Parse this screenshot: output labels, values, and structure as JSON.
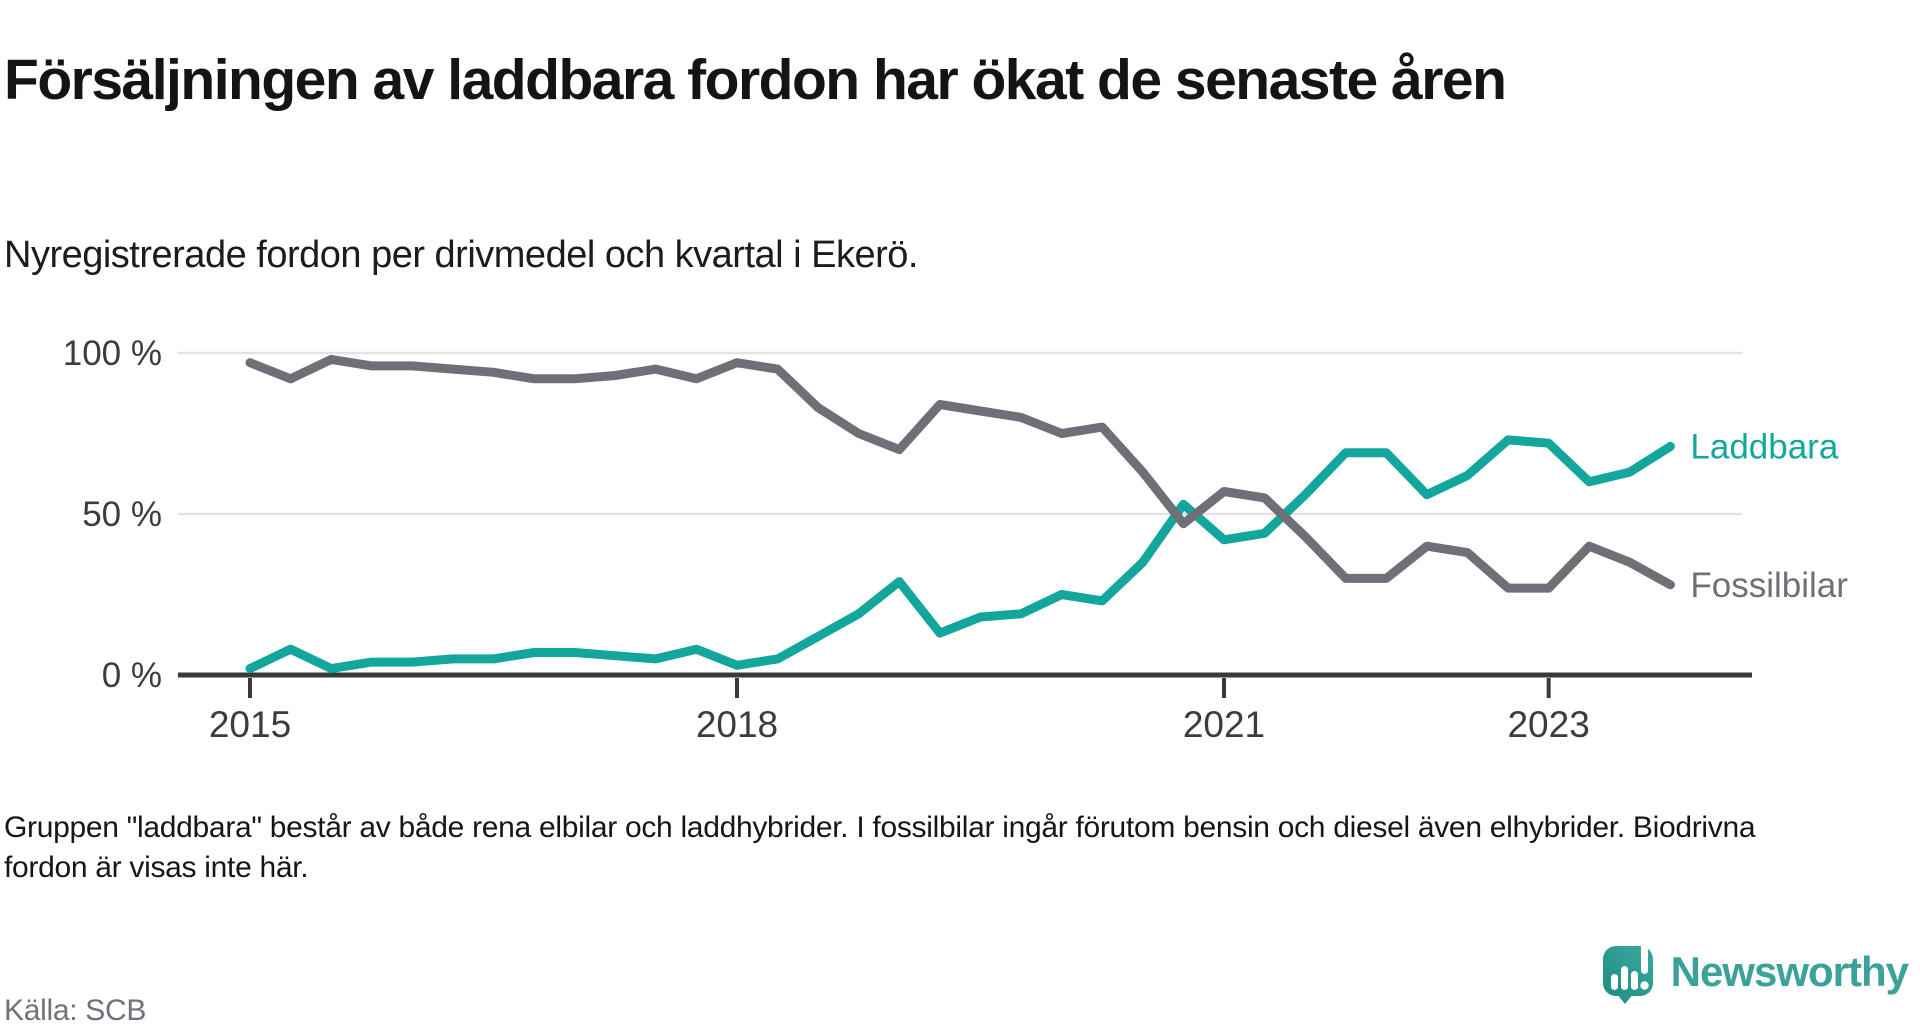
{
  "header": {
    "title": "Försäljningen av laddbara fordon har ökat de senaste åren",
    "subtitle": "Nyregistrerade fordon per drivmedel och kvartal i Ekerö."
  },
  "footer": {
    "note": "Gruppen \"laddbara\" består av både rena elbilar och laddhybrider. I fossilbilar ingår förutom bensin och diesel även elhybrider. Biodrivna fordon är visas inte här.",
    "source": "Källa: SCB",
    "brand": "Newsworthy"
  },
  "colors": {
    "laddbara": "#13a69c",
    "fossilbilar": "#6f6f78",
    "grid": "#e3e3e3",
    "axis": "#3a3a3a",
    "tick_text": "#3c3c3c",
    "brand_teal": "#3ba29a"
  },
  "icons": {
    "logo": "newsworthy-speech-bubble-bar-chart-icon"
  },
  "chart_data": {
    "type": "line",
    "title": "",
    "xlabel": "",
    "ylabel": "%",
    "ylim": [
      0,
      100
    ],
    "grid": "horizontal",
    "legend_position": "inline-right",
    "x": [
      "2015 K1",
      "2015 K2",
      "2015 K3",
      "2015 K4",
      "2016 K1",
      "2016 K2",
      "2016 K3",
      "2016 K4",
      "2017 K1",
      "2017 K2",
      "2017 K3",
      "2017 K4",
      "2018 K1",
      "2018 K2",
      "2018 K3",
      "2018 K4",
      "2019 K1",
      "2019 K2",
      "2019 K3",
      "2019 K4",
      "2020 K1",
      "2020 K2",
      "2020 K3",
      "2020 K4",
      "2021 K1",
      "2021 K2",
      "2021 K3",
      "2021 K4",
      "2022 K1",
      "2022 K2",
      "2022 K3",
      "2022 K4",
      "2023 K1",
      "2023 K2",
      "2023 K3",
      "2023 K4"
    ],
    "x_ticks": [
      {
        "label": "2015",
        "index": 0
      },
      {
        "label": "2018",
        "index": 12
      },
      {
        "label": "2021",
        "index": 24
      },
      {
        "label": "2023",
        "index": 32
      }
    ],
    "y_ticks": [
      {
        "label": "100 %",
        "value": 100
      },
      {
        "label": "50 %",
        "value": 50
      },
      {
        "label": "0 %",
        "value": 0
      }
    ],
    "series": [
      {
        "name": "Laddbara",
        "color": "#13a69c",
        "values": [
          2,
          8,
          2,
          4,
          4,
          5,
          5,
          7,
          7,
          6,
          5,
          8,
          3,
          5,
          12,
          19,
          29,
          13,
          18,
          19,
          25,
          23,
          35,
          53,
          42,
          44,
          56,
          69,
          69,
          56,
          62,
          73,
          72,
          60,
          63,
          71
        ]
      },
      {
        "name": "Fossilbilar",
        "color": "#6f6f78",
        "values": [
          97,
          92,
          98,
          96,
          96,
          95,
          94,
          92,
          92,
          93,
          95,
          92,
          97,
          95,
          83,
          75,
          70,
          84,
          82,
          80,
          75,
          77,
          63,
          47,
          57,
          55,
          43,
          30,
          30,
          40,
          38,
          27,
          27,
          40,
          35,
          28
        ]
      }
    ]
  }
}
